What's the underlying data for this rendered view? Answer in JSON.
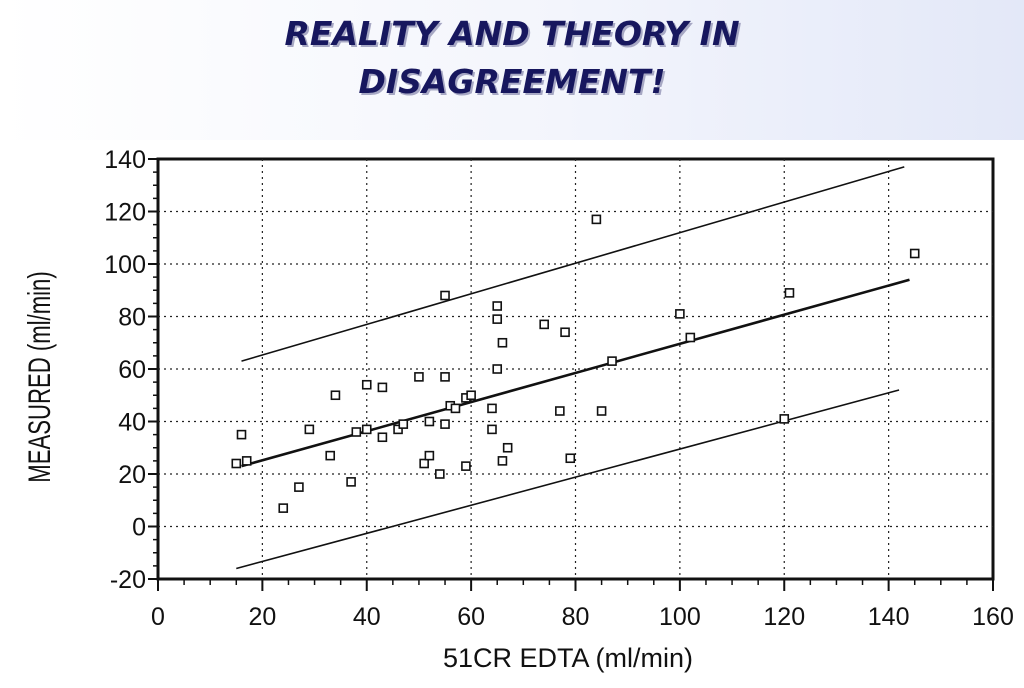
{
  "slide": {
    "title_line1": "REALITY AND THEORY IN",
    "title_line2": "DISAGREEMENT!"
  },
  "chart_data": {
    "type": "scatter",
    "xlabel": "51CR EDTA (ml/min)",
    "ylabel": "MEASURED (ml/min)",
    "xlim": [
      0,
      160
    ],
    "ylim": [
      -20,
      140
    ],
    "xticks": [
      0,
      20,
      40,
      60,
      80,
      100,
      120,
      140,
      160
    ],
    "yticks": [
      -20,
      0,
      20,
      40,
      60,
      80,
      100,
      120,
      140
    ],
    "grid": true,
    "marker": "open-square",
    "points": [
      [
        15,
        24
      ],
      [
        16,
        35
      ],
      [
        17,
        25
      ],
      [
        24,
        7
      ],
      [
        27,
        15
      ],
      [
        29,
        37
      ],
      [
        33,
        27
      ],
      [
        34,
        50
      ],
      [
        37,
        17
      ],
      [
        38,
        36
      ],
      [
        40,
        37
      ],
      [
        40,
        54
      ],
      [
        43,
        34
      ],
      [
        43,
        53
      ],
      [
        46,
        37
      ],
      [
        47,
        39
      ],
      [
        50,
        57
      ],
      [
        51,
        24
      ],
      [
        52,
        40
      ],
      [
        52,
        27
      ],
      [
        54,
        20
      ],
      [
        55,
        88
      ],
      [
        55,
        57
      ],
      [
        55,
        39
      ],
      [
        56,
        46
      ],
      [
        57,
        45
      ],
      [
        59,
        49
      ],
      [
        59,
        23
      ],
      [
        60,
        50
      ],
      [
        64,
        37
      ],
      [
        64,
        45
      ],
      [
        65,
        84
      ],
      [
        65,
        60
      ],
      [
        65,
        79
      ],
      [
        66,
        70
      ],
      [
        66,
        25
      ],
      [
        67,
        30
      ],
      [
        74,
        77
      ],
      [
        77,
        44
      ],
      [
        78,
        74
      ],
      [
        79,
        26
      ],
      [
        84,
        117
      ],
      [
        85,
        44
      ],
      [
        87,
        63
      ],
      [
        100,
        81
      ],
      [
        102,
        72
      ],
      [
        120,
        41
      ],
      [
        121,
        89
      ],
      [
        145,
        104
      ]
    ],
    "lines": [
      {
        "role": "regression",
        "x": [
          16,
          144
        ],
        "y": [
          23,
          94
        ]
      },
      {
        "role": "upper-limit",
        "x": [
          16,
          143
        ],
        "y": [
          63,
          137
        ]
      },
      {
        "role": "lower-limit",
        "x": [
          15,
          142
        ],
        "y": [
          -16,
          52
        ]
      }
    ]
  }
}
